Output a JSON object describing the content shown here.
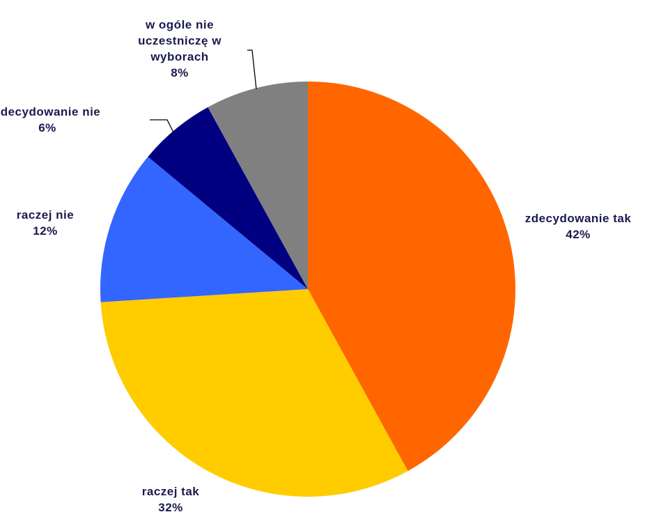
{
  "chart_data": {
    "type": "pie",
    "categories": [
      "zdecydowanie tak",
      "raczej tak",
      "raczej nie",
      "zdecydowanie nie",
      "w ogóle nie uczestniczę w wyborach"
    ],
    "values": [
      42,
      32,
      12,
      6,
      8
    ],
    "value_labels": [
      "42%",
      "32%",
      "12%",
      "6%",
      "8%"
    ],
    "colors": [
      "#ff6600",
      "#ffcc00",
      "#3366ff",
      "#000080",
      "#808080"
    ]
  }
}
